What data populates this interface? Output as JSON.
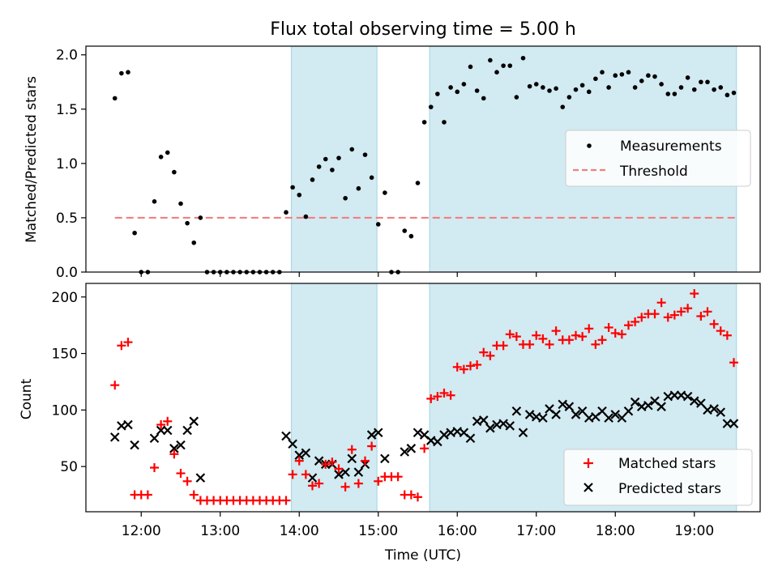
{
  "title": "Flux total observing time = 5.00 h",
  "colors": {
    "measure": "#000000",
    "threshold": "#f08080",
    "matched": "#ff0000",
    "predicted": "#000000",
    "shade": "#add8e6"
  },
  "chart_data": [
    {
      "type": "scatter",
      "ylabel": "Matched/Predicted stars",
      "ylim": [
        0,
        2.08
      ],
      "yticks": [
        0.0,
        0.5,
        1.0,
        1.5,
        2.0
      ],
      "ytick_labels": [
        "0.0",
        "0.5",
        "1.0",
        "1.5",
        "2.0"
      ],
      "legend_position": "center-right",
      "legend": [
        "Measurements",
        "Threshold"
      ],
      "threshold": {
        "name": "Threshold",
        "y": 0.5,
        "x": [
          "11:40",
          "19:32"
        ]
      },
      "shaded_intervals": [
        [
          "13:54",
          "14:59"
        ],
        [
          "15:39",
          "19:32"
        ]
      ],
      "series": [
        {
          "name": "Measurements",
          "x": [
            "11:40",
            "11:45",
            "11:50",
            "11:55",
            "12:00",
            "12:05",
            "12:10",
            "12:15",
            "12:20",
            "12:25",
            "12:30",
            "12:35",
            "12:40",
            "12:45",
            "12:50",
            "12:55",
            "13:00",
            "13:05",
            "13:10",
            "13:15",
            "13:20",
            "13:25",
            "13:30",
            "13:35",
            "13:40",
            "13:45",
            "13:50",
            "13:55",
            "14:00",
            "14:05",
            "14:10",
            "14:15",
            "14:20",
            "14:25",
            "14:30",
            "14:35",
            "14:40",
            "14:45",
            "14:50",
            "14:55",
            "15:00",
            "15:05",
            "15:10",
            "15:15",
            "15:20",
            "15:25",
            "15:30",
            "15:35",
            "15:40",
            "15:45",
            "15:50",
            "15:55",
            "16:00",
            "16:05",
            "16:10",
            "16:15",
            "16:20",
            "16:25",
            "16:30",
            "16:35",
            "16:40",
            "16:45",
            "16:50",
            "16:55",
            "17:00",
            "17:05",
            "17:10",
            "17:15",
            "17:20",
            "17:25",
            "17:30",
            "17:35",
            "17:40",
            "17:45",
            "17:50",
            "17:55",
            "18:00",
            "18:05",
            "18:10",
            "18:15",
            "18:20",
            "18:25",
            "18:30",
            "18:35",
            "18:40",
            "18:45",
            "18:50",
            "18:55",
            "19:00",
            "19:05",
            "19:10",
            "19:15",
            "19:20",
            "19:25",
            "19:30"
          ],
          "y": [
            1.6,
            1.83,
            1.84,
            0.36,
            0.0,
            0.0,
            0.65,
            1.06,
            1.1,
            0.92,
            0.63,
            0.45,
            0.27,
            0.5,
            0.0,
            0.0,
            0.0,
            0.0,
            0.0,
            0.0,
            0.0,
            0.0,
            0.0,
            0.0,
            0.0,
            0.0,
            0.55,
            0.78,
            0.71,
            0.51,
            0.85,
            0.97,
            1.04,
            0.94,
            1.05,
            0.68,
            1.13,
            0.77,
            1.08,
            0.87,
            0.44,
            0.73,
            0.0,
            0.0,
            0.38,
            0.33,
            0.82,
            1.38,
            1.52,
            1.64,
            1.38,
            1.7,
            1.66,
            1.73,
            1.89,
            1.67,
            1.6,
            1.95,
            1.84,
            1.9,
            1.9,
            1.61,
            1.97,
            1.71,
            1.73,
            1.7,
            1.67,
            1.69,
            1.52,
            1.61,
            1.68,
            1.72,
            1.66,
            1.78,
            1.84,
            1.7,
            1.81,
            1.82,
            1.84,
            1.7,
            1.76,
            1.81,
            1.8,
            1.73,
            1.64,
            1.64,
            1.7,
            1.79,
            1.68,
            1.75,
            1.75,
            1.68,
            1.7,
            1.63,
            1.65
          ]
        }
      ]
    },
    {
      "type": "scatter",
      "xlabel": "Time (UTC)",
      "ylabel": "Count",
      "ylim": [
        10,
        212
      ],
      "yticks": [
        50,
        100,
        150,
        200
      ],
      "ytick_labels": [
        "50",
        "100",
        "150",
        "200"
      ],
      "xlim": [
        "11:18",
        "19:50"
      ],
      "xticks": [
        "12:00",
        "13:00",
        "14:00",
        "15:00",
        "16:00",
        "17:00",
        "18:00",
        "19:00"
      ],
      "xtick_labels": [
        "12:00",
        "13:00",
        "14:00",
        "15:00",
        "16:00",
        "17:00",
        "18:00",
        "19:00"
      ],
      "legend_position": "lower-right",
      "legend": [
        "Matched stars",
        "Predicted stars"
      ],
      "shaded_intervals": [
        [
          "13:54",
          "14:59"
        ],
        [
          "15:39",
          "19:32"
        ]
      ],
      "series": [
        {
          "name": "Matched stars",
          "marker": "+",
          "x": [
            "11:40",
            "11:45",
            "11:50",
            "11:55",
            "12:00",
            "12:05",
            "12:10",
            "12:15",
            "12:20",
            "12:25",
            "12:30",
            "12:35",
            "12:40",
            "12:45",
            "12:50",
            "12:55",
            "13:00",
            "13:05",
            "13:10",
            "13:15",
            "13:20",
            "13:25",
            "13:30",
            "13:35",
            "13:40",
            "13:45",
            "13:50",
            "13:55",
            "14:00",
            "14:05",
            "14:10",
            "14:15",
            "14:20",
            "14:25",
            "14:30",
            "14:35",
            "14:40",
            "14:45",
            "14:50",
            "14:55",
            "15:00",
            "15:05",
            "15:10",
            "15:15",
            "15:20",
            "15:25",
            "15:30",
            "15:35",
            "15:40",
            "15:45",
            "15:50",
            "15:55",
            "16:00",
            "16:05",
            "16:10",
            "16:15",
            "16:20",
            "16:25",
            "16:30",
            "16:35",
            "16:40",
            "16:45",
            "16:50",
            "16:55",
            "17:00",
            "17:05",
            "17:10",
            "17:15",
            "17:20",
            "17:25",
            "17:30",
            "17:35",
            "17:40",
            "17:45",
            "17:50",
            "17:55",
            "18:00",
            "18:05",
            "18:10",
            "18:15",
            "18:20",
            "18:25",
            "18:30",
            "18:35",
            "18:40",
            "18:45",
            "18:50",
            "18:55",
            "19:00",
            "19:05",
            "19:10",
            "19:15",
            "19:20",
            "19:25",
            "19:30"
          ],
          "y": [
            122,
            157,
            160,
            25,
            25,
            25,
            49,
            87,
            90,
            61,
            44,
            37,
            25,
            20,
            20,
            20,
            20,
            20,
            20,
            20,
            20,
            20,
            20,
            20,
            20,
            20,
            20,
            43,
            55,
            43,
            33,
            35,
            52,
            54,
            48,
            32,
            65,
            35,
            55,
            68,
            37,
            41,
            41,
            41,
            25,
            25,
            23,
            66,
            110,
            112,
            115,
            113,
            138,
            136,
            139,
            140,
            151,
            148,
            157,
            157,
            167,
            165,
            158,
            158,
            166,
            163,
            158,
            170,
            162,
            162,
            166,
            165,
            172,
            158,
            162,
            173,
            168,
            167,
            175,
            178,
            182,
            185,
            185,
            195,
            182,
            184,
            187,
            190,
            203,
            183,
            187,
            176,
            170,
            166,
            142
          ]
        },
        {
          "name": "Predicted stars",
          "marker": "x",
          "x": [
            "11:40",
            "11:45",
            "11:50",
            "11:55",
            "12:00",
            "12:05",
            "12:10",
            "12:15",
            "12:20",
            "12:25",
            "12:30",
            "12:35",
            "12:40",
            "12:45",
            "12:50",
            "12:55",
            "13:00",
            "13:05",
            "13:10",
            "13:15",
            "13:20",
            "13:25",
            "13:30",
            "13:35",
            "13:40",
            "13:45",
            "13:50",
            "13:55",
            "14:00",
            "14:05",
            "14:10",
            "14:15",
            "14:20",
            "14:25",
            "14:30",
            "14:35",
            "14:40",
            "14:45",
            "14:50",
            "14:55",
            "15:00",
            "15:05",
            "15:10",
            "15:15",
            "15:20",
            "15:25",
            "15:30",
            "15:35",
            "15:40",
            "15:45",
            "15:50",
            "15:55",
            "16:00",
            "16:05",
            "16:10",
            "16:15",
            "16:20",
            "16:25",
            "16:30",
            "16:35",
            "16:40",
            "16:45",
            "16:50",
            "16:55",
            "17:00",
            "17:05",
            "17:10",
            "17:15",
            "17:20",
            "17:25",
            "17:30",
            "17:35",
            "17:40",
            "17:45",
            "17:50",
            "17:55",
            "18:00",
            "18:05",
            "18:10",
            "18:15",
            "18:20",
            "18:25",
            "18:30",
            "18:35",
            "18:40",
            "18:45",
            "18:50",
            "18:55",
            "19:00",
            "19:05",
            "19:10",
            "19:15",
            "19:20",
            "19:25",
            "19:30"
          ],
          "y": [
            76,
            86,
            87,
            69,
            null,
            null,
            75,
            82,
            82,
            66,
            69,
            82,
            90,
            40,
            null,
            null,
            null,
            null,
            null,
            null,
            null,
            null,
            null,
            null,
            null,
            null,
            77,
            70,
            60,
            62,
            40,
            55,
            52,
            52,
            43,
            45,
            57,
            45,
            52,
            78,
            80,
            57,
            null,
            null,
            63,
            66,
            80,
            78,
            73,
            72,
            78,
            80,
            81,
            80,
            75,
            90,
            91,
            84,
            87,
            88,
            86,
            99,
            80,
            96,
            94,
            93,
            101,
            96,
            105,
            103,
            96,
            99,
            93,
            94,
            99,
            93,
            96,
            93,
            99,
            107,
            103,
            104,
            108,
            103,
            112,
            113,
            113,
            112,
            108,
            106,
            100,
            101,
            98,
            88,
            88
          ]
        }
      ]
    }
  ]
}
